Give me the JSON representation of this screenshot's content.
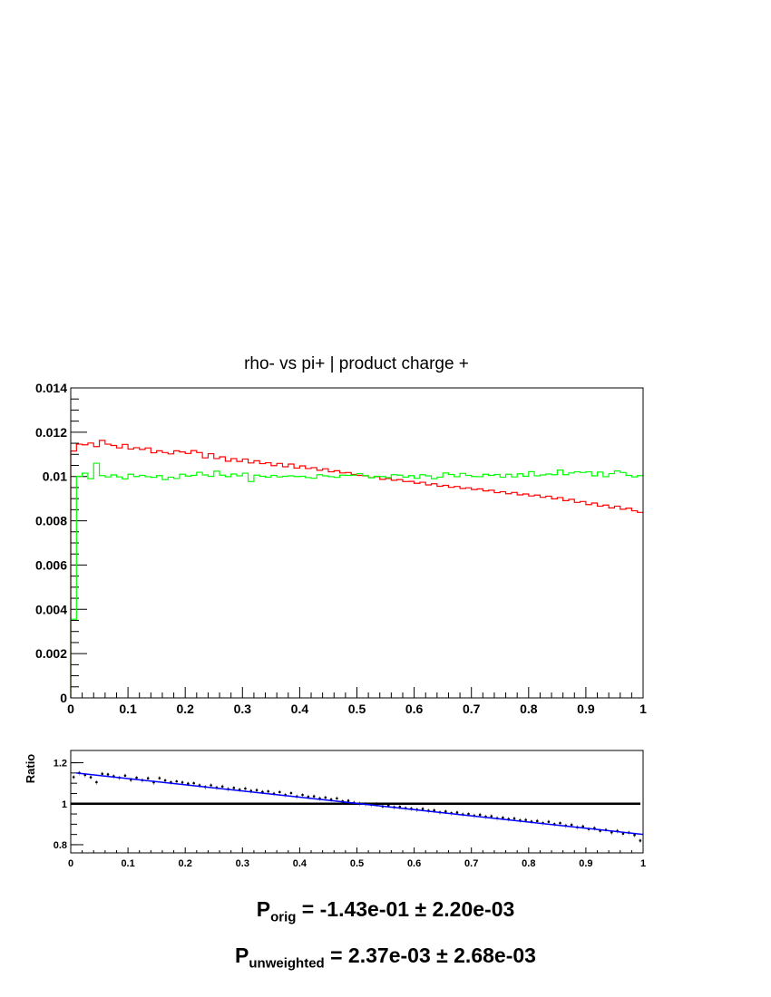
{
  "chart_data": [
    {
      "type": "line",
      "subtype": "step-histogram",
      "title": "rho- vs pi+ | product charge +",
      "xlabel": "",
      "ylabel": "",
      "xlim": [
        0,
        1
      ],
      "ylim": [
        0,
        0.014
      ],
      "x_ticks": [
        "0",
        "0.1",
        "0.2",
        "0.3",
        "0.4",
        "0.5",
        "0.6",
        "0.7",
        "0.8",
        "0.9",
        "1"
      ],
      "y_ticks": [
        "0",
        "0.002",
        "0.004",
        "0.006",
        "0.008",
        "0.01",
        "0.012",
        "0.014"
      ],
      "bins": 100,
      "series": [
        {
          "color": "#ff0000",
          "values": [
            0.01115,
            0.01146,
            0.01143,
            0.01151,
            0.01135,
            0.01163,
            0.01146,
            0.0114,
            0.01129,
            0.01145,
            0.01124,
            0.0113,
            0.01122,
            0.01129,
            0.01107,
            0.01116,
            0.01108,
            0.01102,
            0.01116,
            0.01111,
            0.01104,
            0.01117,
            0.01108,
            0.01084,
            0.01103,
            0.01081,
            0.01089,
            0.01069,
            0.01081,
            0.01068,
            0.01079,
            0.01061,
            0.01071,
            0.01058,
            0.01062,
            0.01049,
            0.01059,
            0.01044,
            0.01056,
            0.01038,
            0.01048,
            0.01036,
            0.0104,
            0.01028,
            0.01035,
            0.01021,
            0.01026,
            0.01016,
            0.01018,
            0.01009,
            0.01005,
            0.01003,
            0.00995,
            0.00999,
            0.00987,
            0.00991,
            0.00983,
            0.00986,
            0.00977,
            0.00978,
            0.00969,
            0.00974,
            0.00962,
            0.00967,
            0.00956,
            0.0096,
            0.00951,
            0.00955,
            0.00946,
            0.00949,
            0.00941,
            0.00944,
            0.00935,
            0.00938,
            0.00927,
            0.00931,
            0.00922,
            0.00928,
            0.00917,
            0.00921,
            0.00912,
            0.00916,
            0.00906,
            0.00911,
            0.00899,
            0.00905,
            0.00891,
            0.00897,
            0.00883,
            0.00887,
            0.00873,
            0.0088,
            0.00866,
            0.00871,
            0.00858,
            0.00866,
            0.00852,
            0.00857,
            0.00845,
            0.00838
          ]
        },
        {
          "color": "#00ff00",
          "values": [
            0.00355,
            0.01001,
            0.01015,
            0.0099,
            0.0106,
            0.01004,
            0.00998,
            0.01007,
            0.00998,
            0.00989,
            0.0101,
            0.01,
            0.01005,
            0.00999,
            0.00996,
            0.01004,
            0.00986,
            0.00997,
            0.00991,
            0.0101,
            0.01002,
            0.01005,
            0.01019,
            0.01007,
            0.01001,
            0.01024,
            0.01006,
            0.00999,
            0.01011,
            0.01003,
            0.01015,
            0.00977,
            0.01006,
            0.01001,
            0.00997,
            0.01005,
            0.00998,
            0.01001,
            0.01003,
            0.01,
            0.01001,
            0.00995,
            0.00992,
            0.01008,
            0.01003,
            0.00999,
            0.00996,
            0.01006,
            0.01005,
            0.01006,
            0.01013,
            0.01004,
            0.00994,
            0.01001,
            0.01,
            0.00995,
            0.01008,
            0.01006,
            0.00997,
            0.01004,
            0.00992,
            0.01008,
            0.01003,
            0.0099,
            0.00997,
            0.01016,
            0.01009,
            0.00999,
            0.01014,
            0.01005,
            0.01,
            0.00999,
            0.0101,
            0.01005,
            0.01009,
            0.00997,
            0.0101,
            0.00998,
            0.01012,
            0.01001,
            0.01022,
            0.01003,
            0.01007,
            0.01011,
            0.01008,
            0.01029,
            0.01008,
            0.01016,
            0.01021,
            0.01018,
            0.01021,
            0.01003,
            0.0102,
            0.00999,
            0.01013,
            0.01025,
            0.01018,
            0.01005,
            0.00998,
            0.01004
          ]
        }
      ]
    },
    {
      "type": "scatter",
      "subtype": "ratio-with-fit",
      "xlabel": "",
      "ylabel": "Ratio",
      "xlim": [
        0,
        1
      ],
      "ylim": [
        0.76,
        1.26
      ],
      "x_ticks": [
        "0",
        "0.1",
        "0.2",
        "0.3",
        "0.4",
        "0.5",
        "0.6",
        "0.7",
        "0.8",
        "0.9",
        "1"
      ],
      "y_ticks": [
        "0.8",
        "1",
        "1.2"
      ],
      "reference_line": 1.0,
      "fit": {
        "color": "#0000ff",
        "type": "linear",
        "y_at_x0": 1.15,
        "y_at_x1": 0.85
      },
      "points": [
        1.13,
        1.15,
        1.14,
        1.129,
        1.105,
        1.146,
        1.143,
        1.134,
        1.127,
        1.137,
        1.117,
        1.127,
        1.115,
        1.124,
        1.104,
        1.125,
        1.114,
        1.105,
        1.109,
        1.104,
        1.098,
        1.1,
        1.09,
        1.082,
        1.09,
        1.079,
        1.084,
        1.072,
        1.077,
        1.069,
        1.074,
        1.063,
        1.066,
        1.058,
        1.06,
        1.049,
        1.057,
        1.043,
        1.052,
        1.035,
        1.043,
        1.034,
        1.036,
        1.026,
        1.03,
        1.021,
        1.026,
        1.012,
        1.015,
        1.005,
        1.001,
        0.999,
        0.995,
        0.998,
        0.987,
        0.992,
        0.983,
        0.985,
        0.978,
        0.976,
        0.971,
        0.975,
        0.966,
        0.968,
        0.958,
        0.962,
        0.954,
        0.957,
        0.948,
        0.95,
        0.942,
        0.946,
        0.937,
        0.939,
        0.929,
        0.932,
        0.925,
        0.928,
        0.919,
        0.921,
        0.913,
        0.916,
        0.906,
        0.912,
        0.9,
        0.905,
        0.893,
        0.897,
        0.885,
        0.889,
        0.876,
        0.881,
        0.868,
        0.872,
        0.86,
        0.867,
        0.854,
        0.859,
        0.847,
        0.82
      ],
      "error": 0.012
    }
  ],
  "polarization": {
    "orig_label": "P",
    "orig_sub": "orig",
    "orig_value": " = -1.43e-01 ± 2.20e-03",
    "unweighted_label": "P",
    "unweighted_sub": "unweighted",
    "unweighted_value": " = 2.37e-03  ± 2.68e-03"
  }
}
